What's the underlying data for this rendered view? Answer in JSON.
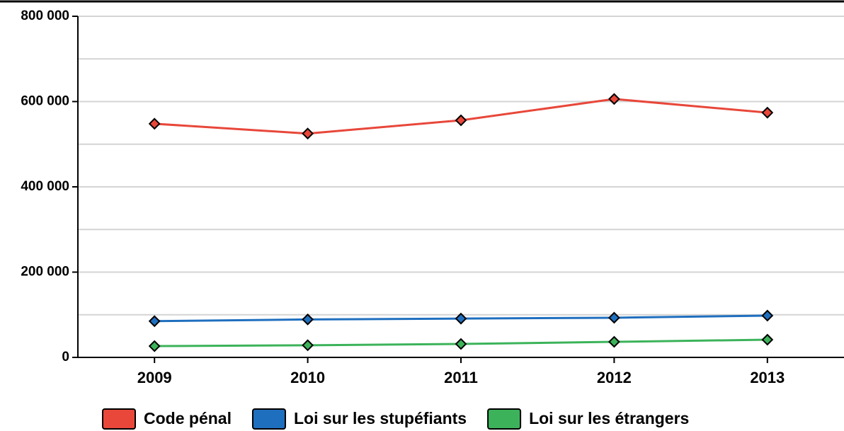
{
  "chart_data": {
    "type": "line",
    "categories": [
      "2009",
      "2010",
      "2011",
      "2012",
      "2013"
    ],
    "series": [
      {
        "name": "Code pénal",
        "color": "#e8473a",
        "values": [
          548000,
          525000,
          556000,
          606000,
          574000
        ]
      },
      {
        "name": "Loi sur les stupéfiants",
        "color": "#1f6fbf",
        "values": [
          85000,
          89000,
          91000,
          93000,
          98000
        ]
      },
      {
        "name": "Loi sur les étrangers",
        "color": "#3cb35a",
        "values": [
          26500,
          28500,
          31500,
          36500,
          41500
        ]
      }
    ],
    "ylim": [
      0,
      800000
    ],
    "yticks": [
      0,
      {
        "value": 200000,
        "label": "200 000"
      },
      {
        "value": 400000,
        "label": "400 000"
      },
      {
        "value": 600000,
        "label": "600 000"
      },
      {
        "value": 800000,
        "label": "800 000"
      }
    ],
    "yticks_minor": [
      100000,
      300000,
      500000,
      700000
    ],
    "grid": true,
    "legend": "bottom"
  }
}
